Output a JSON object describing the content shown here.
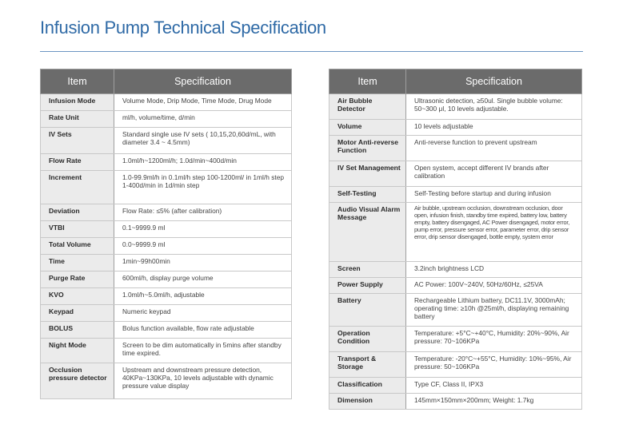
{
  "page": {
    "title": "Infusion Pump Technical Specification"
  },
  "left_table": {
    "header": [
      "Item",
      "Specification"
    ],
    "rows": [
      {
        "item": "Infusion Mode",
        "spec": "Volume Mode, Drip Mode, Time Mode, Drug Mode"
      },
      {
        "item": "Rate Unit",
        "spec": "ml/h, volume/time, d/min"
      },
      {
        "item": "IV Sets",
        "spec": "Standard single use IV sets ( 10,15,20,60d/mL, with diameter 3.4 ~ 4.5mm)"
      },
      {
        "item": "Flow Rate",
        "spec": "1.0ml/h~1200ml/h; 1.0d/min~400d/min"
      },
      {
        "item": "Increment",
        "spec": "1.0-99.9ml/h in 0.1ml/h step 100-1200ml/ in 1ml/h step 1-400d/min in 1d/min step"
      },
      {
        "item": "Deviation",
        "spec": "Flow Rate: ≤5% (after calibration)"
      },
      {
        "item": "VTBI",
        "spec": "0.1~9999.9 ml"
      },
      {
        "item": "Total Volume",
        "spec": "0.0~9999.9 ml"
      },
      {
        "item": "Time",
        "spec": "1min~99h00min"
      },
      {
        "item": "Purge Rate",
        "spec": "600ml/h, display purge volume"
      },
      {
        "item": "KVO",
        "spec": "1.0ml/h~5.0ml/h, adjustable"
      },
      {
        "item": "Keypad",
        "spec": "Numeric keypad"
      },
      {
        "item": "BOLUS",
        "spec": "Bolus function available, flow rate adjustable"
      },
      {
        "item": "Night Mode",
        "spec": "Screen to be dim automatically in 5mins after standby time expired."
      },
      {
        "item": "Occlusion pressure detector",
        "spec": "Upstream and downstream pressure detection, 40KPa~130KPa, 10 levels adjustable with dynamic pressure value display"
      }
    ]
  },
  "right_table": {
    "header": [
      "Item",
      "Specification"
    ],
    "rows": [
      {
        "item": "Air Bubble Detector",
        "spec": "Ultrasonic detection, ≥50ul. Single bubble volume: 50~300 μl, 10 levels adjustable."
      },
      {
        "item": "Volume",
        "spec": "10 levels adjustable"
      },
      {
        "item": "Motor Anti-reverse Function",
        "spec": "Anti-reverse function to prevent upstream"
      },
      {
        "item": "IV Set Management",
        "spec": "Open system, accept different IV brands after calibration"
      },
      {
        "item": "Self-Testing",
        "spec": "Self-Testing before startup and during infusion"
      },
      {
        "item": "Audio Visual Alarm Message",
        "spec": "Air bubble, upstream occlusion, downstream occlusion, door open, infusion finish, standby time expired, battery low, battery empty, battery disengaged, AC Power disengaged, motor error, pump error, pressure sensor error, parameter error, drip sensor error, drip sensor disengaged, bottle empty, system error"
      },
      {
        "item": "Screen",
        "spec": "3.2inch brightness LCD"
      },
      {
        "item": "Power Supply",
        "spec": "AC Power: 100V~240V, 50Hz/60Hz, ≤25VA"
      },
      {
        "item": "Battery",
        "spec": "Rechargeable Lithium battery, DC11.1V, 3000mAh; operating time: ≥10h @25ml/h, displaying remaining battery"
      },
      {
        "item": "Operation Condition",
        "spec": "Temperature: +5°C~+40°C, Humidity: 20%~90%, Air pressure: 70~106KPa"
      },
      {
        "item": "Transport & Storage",
        "spec": "Temperature: -20°C~+55°C, Humidity: 10%~95%, Air pressure: 50~106KPa"
      },
      {
        "item": "Classification",
        "spec": "Type CF, Class II, IPX3"
      },
      {
        "item": "Dimension",
        "spec": "145mm×150mm×200mm; Weight: 1.7kg"
      }
    ]
  }
}
